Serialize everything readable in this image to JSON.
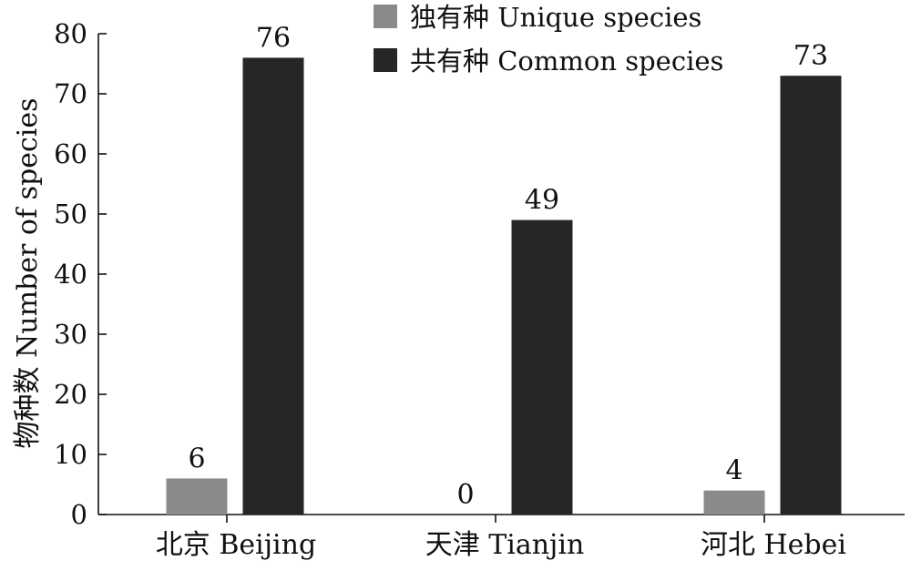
{
  "chart_data": {
    "type": "bar",
    "title": "",
    "xlabel": "",
    "ylabel": "物种数 Number of species",
    "ylim": [
      0,
      80
    ],
    "yticks": [
      0,
      10,
      20,
      30,
      40,
      50,
      60,
      70,
      80
    ],
    "categories": [
      "北京 Beijing",
      "天津 Tianjin",
      "河北 Hebei"
    ],
    "series": [
      {
        "name": "独有种 Unique species",
        "values": [
          6,
          0,
          4
        ],
        "color": "#8a8a8c"
      },
      {
        "name": "共有种 Common species",
        "values": [
          76,
          49,
          73
        ],
        "color": "#262628"
      }
    ],
    "legend": "top-center",
    "grid": false,
    "data_labels": true
  }
}
